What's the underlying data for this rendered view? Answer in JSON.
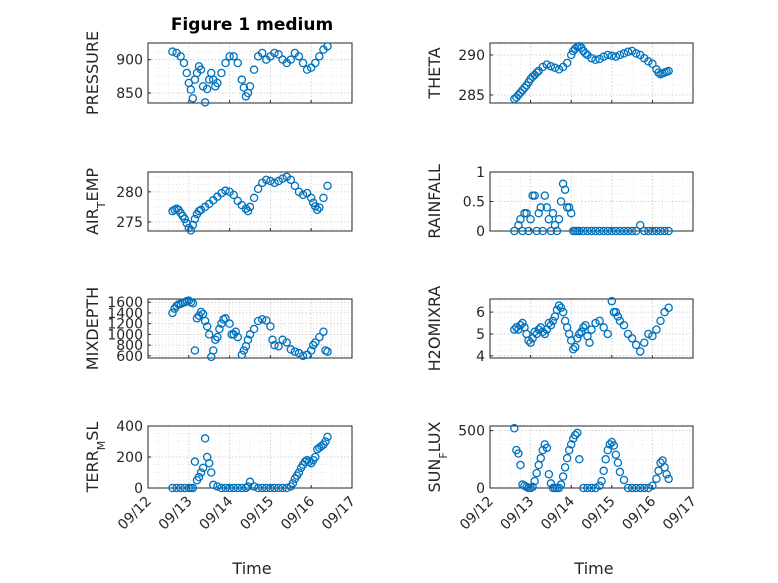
{
  "figure": {
    "title": "Figure 1 medium",
    "xlabel": "Time"
  },
  "chart_data": [
    {
      "type": "scatter",
      "ylabel": "PRESSURE",
      "ylabel_html": "PRESSURE",
      "ylim": [
        835,
        925
      ],
      "yticks": [
        850,
        900
      ],
      "xticks": [
        "09/12",
        "09/13",
        "09/14",
        "09/15",
        "09/16",
        "09/17"
      ],
      "xlim": [
        0,
        5
      ],
      "x": [
        0.6,
        0.7,
        0.8,
        0.88,
        0.95,
        1.0,
        1.05,
        1.1,
        1.15,
        1.2,
        1.25,
        1.3,
        1.35,
        1.4,
        1.45,
        1.5,
        1.55,
        1.6,
        1.65,
        1.7,
        1.8,
        1.9,
        2.0,
        2.1,
        2.2,
        2.3,
        2.35,
        2.4,
        2.45,
        2.5,
        2.6,
        2.7,
        2.8,
        2.9,
        3.0,
        3.1,
        3.2,
        3.3,
        3.4,
        3.5,
        3.6,
        3.7,
        3.8,
        3.9,
        4.0,
        4.1,
        4.2,
        4.3,
        4.4
      ],
      "y": [
        912,
        910,
        905,
        895,
        880,
        865,
        855,
        842,
        870,
        880,
        890,
        885,
        860,
        836,
        856,
        870,
        880,
        870,
        860,
        865,
        880,
        895,
        905,
        905,
        895,
        870,
        858,
        845,
        850,
        860,
        885,
        905,
        910,
        900,
        905,
        910,
        908,
        900,
        895,
        900,
        910,
        905,
        895,
        885,
        888,
        895,
        905,
        915,
        920
      ],
      "xlabel": "",
      "title": "Figure 1 medium"
    },
    {
      "type": "scatter",
      "ylabel": "THETA",
      "ylabel_html": "THETA",
      "ylim": [
        284,
        291.5
      ],
      "yticks": [
        285,
        290
      ],
      "xticks": [
        "09/12",
        "09/13",
        "09/14",
        "09/15",
        "09/16",
        "09/17"
      ],
      "xlim": [
        0,
        5
      ],
      "x": [
        0.6,
        0.65,
        0.7,
        0.75,
        0.8,
        0.85,
        0.9,
        0.95,
        1.0,
        1.05,
        1.1,
        1.15,
        1.2,
        1.3,
        1.4,
        1.5,
        1.6,
        1.7,
        1.8,
        1.9,
        2.0,
        2.05,
        2.1,
        2.15,
        2.2,
        2.25,
        2.3,
        2.35,
        2.4,
        2.5,
        2.6,
        2.7,
        2.8,
        2.9,
        3.0,
        3.1,
        3.2,
        3.3,
        3.4,
        3.5,
        3.6,
        3.7,
        3.8,
        3.9,
        4.0,
        4.1,
        4.15,
        4.2,
        4.25,
        4.3,
        4.35,
        4.4
      ],
      "y": [
        284.5,
        284.7,
        285.0,
        285.3,
        285.6,
        285.9,
        286.2,
        286.6,
        287.0,
        287.3,
        287.5,
        287.8,
        288.0,
        288.5,
        288.8,
        288.6,
        288.4,
        288.2,
        288.5,
        289.0,
        290.0,
        290.5,
        290.8,
        291.0,
        291.1,
        290.9,
        290.5,
        290.2,
        290.0,
        289.6,
        289.4,
        289.5,
        289.8,
        290.0,
        289.9,
        289.8,
        290.0,
        290.2,
        290.4,
        290.5,
        290.2,
        290.0,
        289.6,
        289.2,
        288.9,
        288.2,
        287.8,
        287.6,
        287.7,
        287.8,
        287.9,
        288.0
      ],
      "xlabel": "",
      "title": ""
    },
    {
      "type": "scatter",
      "ylabel": "AIR_TEMP",
      "ylabel_html": "AIR<tspan baseline-shift=\"sub\" font-size=\"11\">T</tspan>EMP",
      "ylim": [
        273.5,
        283.3
      ],
      "yticks": [
        275,
        280
      ],
      "xticks": [
        "09/12",
        "09/13",
        "09/14",
        "09/15",
        "09/16",
        "09/17"
      ],
      "xlim": [
        0,
        5
      ],
      "x": [
        0.6,
        0.65,
        0.7,
        0.75,
        0.8,
        0.85,
        0.9,
        0.95,
        1.0,
        1.05,
        1.1,
        1.15,
        1.2,
        1.25,
        1.3,
        1.4,
        1.5,
        1.6,
        1.7,
        1.8,
        1.9,
        2.0,
        2.1,
        2.2,
        2.3,
        2.4,
        2.45,
        2.5,
        2.6,
        2.7,
        2.8,
        2.9,
        3.0,
        3.1,
        3.2,
        3.3,
        3.4,
        3.5,
        3.6,
        3.7,
        3.8,
        3.9,
        4.0,
        4.05,
        4.1,
        4.15,
        4.2,
        4.3,
        4.4
      ],
      "y": [
        276.8,
        277.0,
        277.2,
        277.0,
        276.5,
        276.0,
        275.5,
        274.8,
        274.0,
        273.6,
        274.5,
        275.5,
        276.3,
        276.8,
        277.0,
        277.5,
        278.0,
        278.6,
        279.2,
        279.8,
        280.2,
        280.0,
        279.5,
        278.5,
        277.8,
        277.2,
        276.8,
        277.5,
        279.0,
        280.5,
        281.5,
        282.0,
        281.8,
        281.5,
        281.8,
        282.2,
        282.5,
        282.0,
        281.0,
        280.0,
        279.5,
        279.8,
        279.0,
        278.2,
        277.6,
        277.0,
        277.4,
        279.0,
        281.0
      ],
      "xlabel": "",
      "title": ""
    },
    {
      "type": "scatter",
      "ylabel": "RAINFALL",
      "ylabel_html": "RAINFALL",
      "ylim": [
        0,
        1
      ],
      "yticks": [
        0,
        0.5,
        1
      ],
      "xticks": [
        "09/12",
        "09/13",
        "09/14",
        "09/15",
        "09/16",
        "09/17"
      ],
      "xlim": [
        0,
        5
      ],
      "x": [
        0.6,
        0.7,
        0.75,
        0.8,
        0.85,
        0.9,
        0.95,
        1.0,
        1.05,
        1.1,
        1.15,
        1.2,
        1.25,
        1.3,
        1.35,
        1.4,
        1.45,
        1.5,
        1.55,
        1.6,
        1.65,
        1.7,
        1.75,
        1.8,
        1.85,
        1.9,
        1.95,
        2.0,
        2.05,
        2.1,
        2.15,
        2.2,
        2.3,
        2.4,
        2.5,
        2.6,
        2.7,
        2.8,
        2.9,
        3.0,
        3.1,
        3.2,
        3.3,
        3.4,
        3.5,
        3.6,
        3.7,
        3.8,
        3.9,
        4.0,
        4.1,
        4.2,
        4.3,
        4.4
      ],
      "y": [
        0,
        0.1,
        0.2,
        0,
        0.3,
        0.3,
        0,
        0.2,
        0.6,
        0.6,
        0,
        0.3,
        0.4,
        0,
        0.6,
        0.4,
        0.2,
        0,
        0.3,
        0.1,
        0,
        0.2,
        0.5,
        0.8,
        0.7,
        0.4,
        0.4,
        0.3,
        0,
        0,
        0,
        0,
        0,
        0,
        0,
        0,
        0,
        0,
        0,
        0,
        0,
        0,
        0,
        0,
        0,
        0,
        0.1,
        0,
        0,
        0,
        0,
        0,
        0,
        0
      ],
      "xlabel": "",
      "title": ""
    },
    {
      "type": "scatter",
      "ylabel": "MIXDEPTH",
      "ylabel_html": "MIXDEPTH",
      "ylim": [
        560,
        1660
      ],
      "yticks": [
        600,
        800,
        1000,
        1200,
        1400,
        1600
      ],
      "xticks": [
        "09/12",
        "09/13",
        "09/14",
        "09/15",
        "09/16",
        "09/17"
      ],
      "xlim": [
        0,
        5
      ],
      "x": [
        0.6,
        0.65,
        0.7,
        0.75,
        0.8,
        0.85,
        0.9,
        0.95,
        1.0,
        1.05,
        1.1,
        1.15,
        1.2,
        1.25,
        1.3,
        1.35,
        1.4,
        1.45,
        1.5,
        1.55,
        1.6,
        1.65,
        1.7,
        1.75,
        1.8,
        1.85,
        1.9,
        2.0,
        2.05,
        2.1,
        2.15,
        2.2,
        2.3,
        2.35,
        2.4,
        2.45,
        2.5,
        2.6,
        2.7,
        2.8,
        2.9,
        3.0,
        3.05,
        3.1,
        3.2,
        3.3,
        3.4,
        3.5,
        3.6,
        3.7,
        3.8,
        3.9,
        4.0,
        4.05,
        4.1,
        4.2,
        4.3,
        4.35,
        4.4
      ],
      "y": [
        1400,
        1480,
        1530,
        1560,
        1570,
        1590,
        1600,
        1620,
        1630,
        1600,
        1580,
        700,
        1300,
        1350,
        1420,
        1380,
        1250,
        1150,
        1000,
        580,
        700,
        900,
        950,
        1100,
        1200,
        1280,
        1300,
        1200,
        1000,
        1000,
        1050,
        950,
        620,
        700,
        780,
        900,
        1000,
        1100,
        1250,
        1280,
        1260,
        1150,
        900,
        800,
        780,
        900,
        850,
        720,
        680,
        650,
        600,
        620,
        700,
        800,
        850,
        950,
        1050,
        700,
        680
      ],
      "xlabel": "",
      "title": ""
    },
    {
      "type": "scatter",
      "ylabel": "H2OMIXRA",
      "ylabel_html": "H2OMIXRA",
      "ylim": [
        3.9,
        6.6
      ],
      "yticks": [
        4,
        5,
        6
      ],
      "xticks": [
        "09/12",
        "09/13",
        "09/14",
        "09/15",
        "09/16",
        "09/17"
      ],
      "xlim": [
        0,
        5
      ],
      "x": [
        0.6,
        0.65,
        0.7,
        0.75,
        0.8,
        0.85,
        0.9,
        0.95,
        1.0,
        1.05,
        1.1,
        1.15,
        1.2,
        1.25,
        1.3,
        1.35,
        1.4,
        1.45,
        1.5,
        1.55,
        1.6,
        1.65,
        1.7,
        1.75,
        1.8,
        1.85,
        1.9,
        1.95,
        2.0,
        2.05,
        2.1,
        2.15,
        2.2,
        2.25,
        2.3,
        2.35,
        2.4,
        2.45,
        2.5,
        2.6,
        2.7,
        2.8,
        2.9,
        3.0,
        3.05,
        3.1,
        3.15,
        3.2,
        3.3,
        3.4,
        3.5,
        3.6,
        3.7,
        3.8,
        3.9,
        4.0,
        4.1,
        4.2,
        4.3,
        4.4
      ],
      "y": [
        5.2,
        5.3,
        5.2,
        5.4,
        5.5,
        5.3,
        5.0,
        4.7,
        4.6,
        4.8,
        5.1,
        5.0,
        5.2,
        5.3,
        5.1,
        5.0,
        5.2,
        5.5,
        5.4,
        5.6,
        5.8,
        6.1,
        6.3,
        6.2,
        6.0,
        5.6,
        5.3,
        5.0,
        4.7,
        4.3,
        4.4,
        4.8,
        5.0,
        5.1,
        5.3,
        5.4,
        4.9,
        4.6,
        5.2,
        5.5,
        5.6,
        5.3,
        5.0,
        6.5,
        6.0,
        6.0,
        5.8,
        5.6,
        5.4,
        5.0,
        4.8,
        4.5,
        4.2,
        4.6,
        5.0,
        4.9,
        5.2,
        5.6,
        6.0,
        6.2
      ],
      "xlabel": "",
      "title": ""
    },
    {
      "type": "scatter",
      "ylabel": "TERR_MSL",
      "ylabel_html": "TERR<tspan baseline-shift=\"sub\" font-size=\"11\">M</tspan>SL",
      "ylim": [
        0,
        400
      ],
      "yticks": [
        0,
        200,
        400
      ],
      "xticks": [
        "09/12",
        "09/13",
        "09/14",
        "09/15",
        "09/16",
        "09/17"
      ],
      "xlim": [
        0,
        5
      ],
      "x": [
        0.6,
        0.7,
        0.8,
        0.9,
        1.0,
        1.05,
        1.1,
        1.15,
        1.2,
        1.25,
        1.3,
        1.35,
        1.4,
        1.45,
        1.5,
        1.55,
        1.6,
        1.7,
        1.8,
        1.9,
        2.0,
        2.1,
        2.2,
        2.3,
        2.4,
        2.45,
        2.5,
        2.6,
        2.7,
        2.8,
        2.9,
        3.0,
        3.1,
        3.2,
        3.3,
        3.4,
        3.5,
        3.55,
        3.6,
        3.65,
        3.7,
        3.75,
        3.8,
        3.85,
        3.9,
        3.95,
        4.0,
        4.05,
        4.1,
        4.15,
        4.2,
        4.25,
        4.3,
        4.35,
        4.4
      ],
      "y": [
        0,
        0,
        0,
        0,
        0,
        0,
        0,
        170,
        50,
        70,
        100,
        130,
        320,
        200,
        160,
        100,
        20,
        10,
        0,
        0,
        0,
        0,
        0,
        0,
        0,
        10,
        40,
        10,
        0,
        0,
        0,
        0,
        0,
        0,
        0,
        0,
        10,
        30,
        60,
        80,
        100,
        130,
        150,
        170,
        180,
        170,
        160,
        180,
        200,
        250,
        260,
        270,
        280,
        300,
        330
      ],
      "xlabel": "",
      "title": ""
    },
    {
      "type": "scatter",
      "ylabel": "SUN_FLUX",
      "ylabel_html": "SUN<tspan baseline-shift=\"sub\" font-size=\"11\">F</tspan>LUX",
      "ylim": [
        0,
        540
      ],
      "yticks": [
        0,
        500
      ],
      "xticks": [
        "09/12",
        "09/13",
        "09/14",
        "09/15",
        "09/16",
        "09/17"
      ],
      "xlim": [
        0,
        5
      ],
      "x": [
        0.6,
        0.65,
        0.7,
        0.75,
        0.8,
        0.85,
        0.9,
        0.95,
        1.0,
        1.05,
        1.1,
        1.15,
        1.2,
        1.25,
        1.3,
        1.35,
        1.4,
        1.45,
        1.5,
        1.55,
        1.6,
        1.65,
        1.7,
        1.75,
        1.8,
        1.85,
        1.9,
        1.95,
        2.0,
        2.05,
        2.1,
        2.15,
        2.2,
        2.3,
        2.4,
        2.5,
        2.6,
        2.7,
        2.75,
        2.8,
        2.85,
        2.9,
        2.95,
        3.0,
        3.05,
        3.1,
        3.15,
        3.2,
        3.3,
        3.4,
        3.5,
        3.6,
        3.7,
        3.8,
        3.9,
        4.0,
        4.1,
        4.15,
        4.2,
        4.25,
        4.3,
        4.35,
        4.4
      ],
      "y": [
        520,
        330,
        300,
        200,
        30,
        20,
        10,
        0,
        0,
        10,
        60,
        130,
        200,
        260,
        330,
        380,
        350,
        120,
        40,
        0,
        0,
        0,
        0,
        30,
        100,
        180,
        260,
        330,
        380,
        430,
        460,
        480,
        250,
        0,
        0,
        0,
        0,
        20,
        60,
        150,
        250,
        330,
        380,
        400,
        370,
        290,
        220,
        140,
        70,
        0,
        0,
        0,
        0,
        0,
        0,
        20,
        80,
        150,
        220,
        240,
        180,
        120,
        80
      ],
      "xlabel": "Time",
      "title": ""
    }
  ]
}
